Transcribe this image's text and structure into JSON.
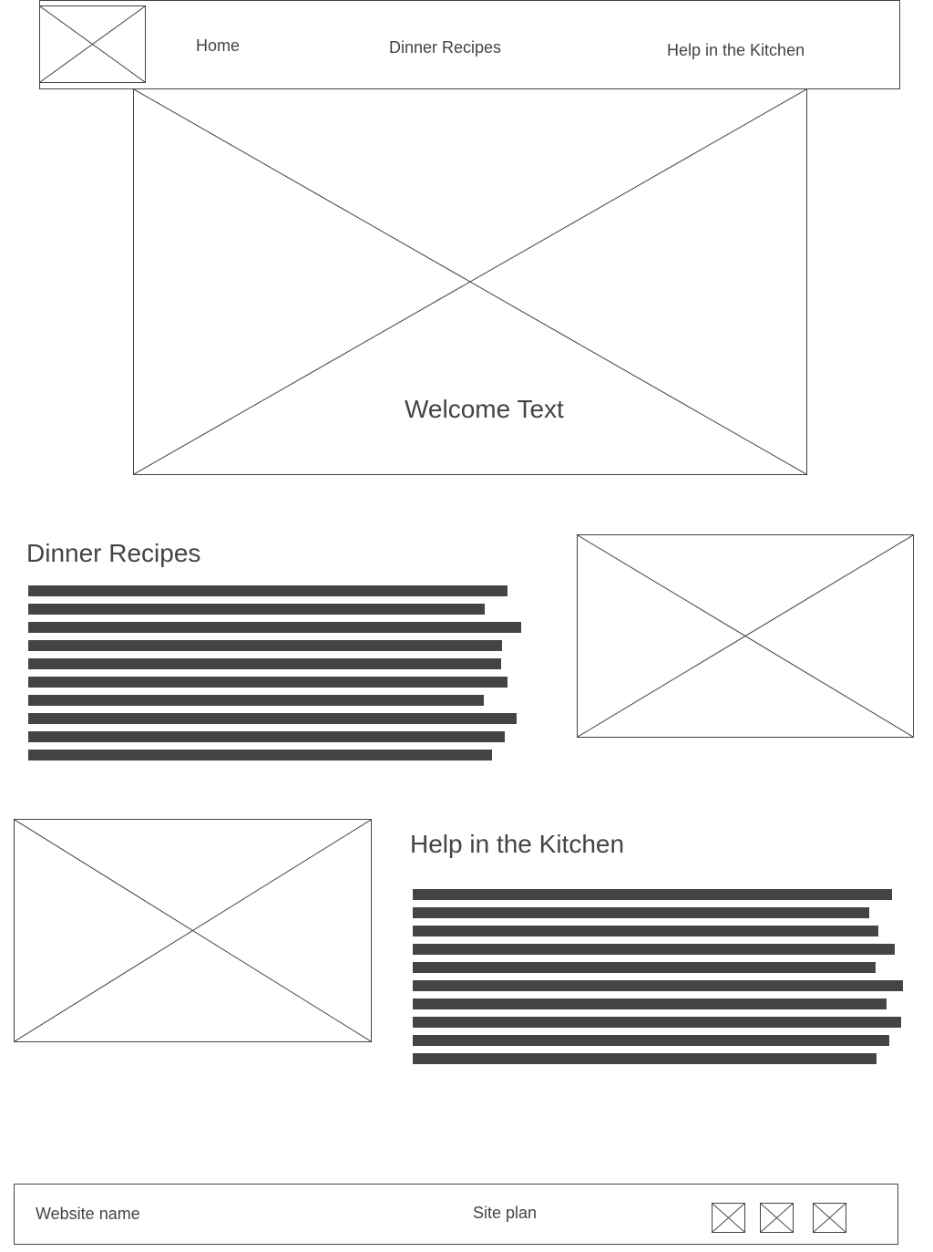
{
  "header": {
    "logo_icon": "image-placeholder-icon",
    "nav": [
      {
        "label": "Home"
      },
      {
        "label": "Dinner Recipes"
      },
      {
        "label": "Help in the Kitchen"
      }
    ]
  },
  "hero": {
    "image_icon": "image-placeholder-icon",
    "welcome_text": "Welcome Text"
  },
  "sections": {
    "dinner": {
      "title": "Dinner Recipes",
      "image_icon": "image-placeholder-icon",
      "text_lines": 10
    },
    "kitchen": {
      "title": "Help in the Kitchen",
      "image_icon": "image-placeholder-icon",
      "text_lines": 10
    }
  },
  "footer": {
    "website_name": "Website name",
    "site_plan": "Site plan",
    "social_icons": [
      "image-placeholder-icon",
      "image-placeholder-icon",
      "image-placeholder-icon"
    ]
  },
  "colors": {
    "ink": "#444444",
    "background": "#ffffff"
  }
}
